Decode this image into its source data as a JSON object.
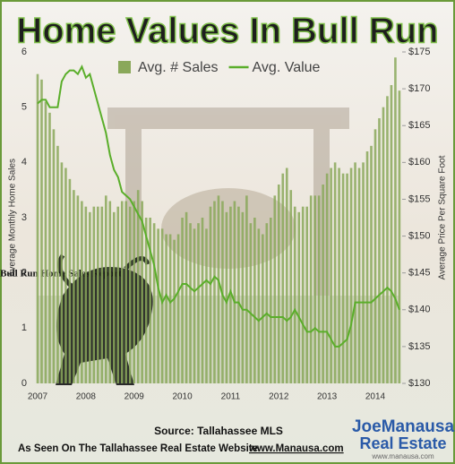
{
  "chart_data": {
    "type": "bar-line",
    "title": "Home Values In Bull Run",
    "y_label": "Average Monthly Home Sales",
    "y2_label": "Average Price Per Square Foot",
    "annotation": "Bull Run Home Sales Report",
    "source": "Source: Tallahassee MLS",
    "footer": "As Seen On The Tallahassee Real Estate Website",
    "footer_link": "www.Manausa.com",
    "logo": {
      "top": "JoeManausa",
      "bottom": "Real Estate",
      "url": "www.manausa.com"
    },
    "categories": [
      "2007",
      null,
      null,
      null,
      null,
      null,
      null,
      null,
      null,
      null,
      null,
      null,
      "2008",
      null,
      null,
      null,
      null,
      null,
      null,
      null,
      null,
      null,
      null,
      null,
      "2009",
      null,
      null,
      null,
      null,
      null,
      null,
      null,
      null,
      null,
      null,
      null,
      "2010",
      null,
      null,
      null,
      null,
      null,
      null,
      null,
      null,
      null,
      null,
      null,
      "2011",
      null,
      null,
      null,
      null,
      null,
      null,
      null,
      null,
      null,
      null,
      null,
      "2012",
      null,
      null,
      null,
      null,
      null,
      null,
      null,
      null,
      null,
      null,
      null,
      "2013",
      null,
      null,
      null,
      null,
      null,
      null,
      null,
      null,
      null,
      null,
      null,
      "2014",
      null,
      null,
      null,
      null,
      null,
      null
    ],
    "series": [
      {
        "name": "Avg. # Sales",
        "type": "bar",
        "color": "#8aa85a",
        "values": [
          5.6,
          5.5,
          5.1,
          4.9,
          4.6,
          4.3,
          4.0,
          3.9,
          3.7,
          3.5,
          3.4,
          3.3,
          3.2,
          3.1,
          3.2,
          3.2,
          3.2,
          3.4,
          3.3,
          3.1,
          3.2,
          3.3,
          3.3,
          3.2,
          3.3,
          3.5,
          3.3,
          3.0,
          3.0,
          2.9,
          2.8,
          2.8,
          2.7,
          2.7,
          2.6,
          2.7,
          3.0,
          3.1,
          2.9,
          2.8,
          2.9,
          3.0,
          2.8,
          3.2,
          3.3,
          3.4,
          3.3,
          3.1,
          3.2,
          3.3,
          3.2,
          3.1,
          3.4,
          2.9,
          3.0,
          2.8,
          2.7,
          2.9,
          3.0,
          3.4,
          3.6,
          3.8,
          3.9,
          3.5,
          3.2,
          3.1,
          3.2,
          3.2,
          3.4,
          3.4,
          3.4,
          3.6,
          3.8,
          3.9,
          4.0,
          3.9,
          3.8,
          3.8,
          3.9,
          4.0,
          3.9,
          4.0,
          4.2,
          4.3,
          4.6,
          4.8,
          5.0,
          5.2,
          5.4,
          5.9,
          5.3
        ]
      },
      {
        "name": "Avg. Value",
        "type": "line",
        "axis": "y2",
        "color": "#5aae2a",
        "values": [
          168,
          168.5,
          168.5,
          167.5,
          167.5,
          167.5,
          171,
          172,
          172.5,
          172.5,
          172,
          173,
          171.5,
          172,
          170,
          168,
          166,
          164,
          161,
          159,
          158,
          156,
          155.5,
          155,
          154,
          153,
          152,
          150,
          148,
          146,
          143,
          141,
          142,
          141,
          141.5,
          142.5,
          143.5,
          143.5,
          143,
          142.5,
          143,
          143.5,
          144,
          143.5,
          144.5,
          144,
          142,
          141,
          142.5,
          141,
          141,
          140,
          140,
          139.5,
          139,
          138.5,
          139,
          139.5,
          139,
          139,
          139,
          139,
          138.5,
          139,
          140,
          139,
          138,
          137,
          137,
          137.5,
          137,
          137,
          137,
          136,
          135,
          135,
          135.5,
          136,
          138,
          141,
          141,
          141,
          141,
          141,
          141.5,
          142,
          142.5,
          143,
          142.5,
          141.5,
          140
        ]
      }
    ],
    "ylim": [
      0,
      6
    ],
    "yticks": [
      0,
      1,
      2,
      3,
      4,
      5,
      6
    ],
    "y2lim": [
      130,
      175
    ],
    "y2ticks": [
      {
        "value": 130,
        "label": "$130"
      },
      {
        "value": 135,
        "label": "$135"
      },
      {
        "value": 140,
        "label": "$140"
      },
      {
        "value": 145,
        "label": "$145"
      },
      {
        "value": 150,
        "label": "$150"
      },
      {
        "value": 155,
        "label": "$155"
      },
      {
        "value": 160,
        "label": "$160"
      },
      {
        "value": 165,
        "label": "$165"
      },
      {
        "value": 170,
        "label": "$170"
      },
      {
        "value": 175,
        "label": "$175"
      }
    ],
    "legend": "top"
  }
}
